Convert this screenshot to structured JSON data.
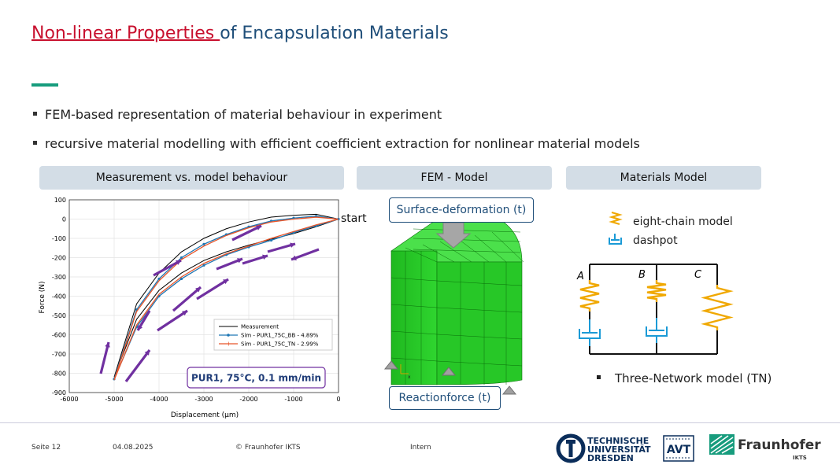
{
  "title": {
    "part1": "Non-linear Properties ",
    "part2": "of Encapsulation Materials"
  },
  "bullets": [
    "FEM-based representation of material behaviour in experiment",
    "recursive material modelling with efficient coefficient extraction for nonlinear material models"
  ],
  "panels": {
    "measurement": "Measurement vs. model behaviour",
    "fem": "FEM - Model",
    "materials": "Materials Model"
  },
  "chart_data": {
    "type": "line",
    "xlabel": "Displacement (µm)",
    "ylabel": "Force (N)",
    "xlim": [
      -6000,
      0
    ],
    "ylim": [
      -900,
      100
    ],
    "xticks": [
      -6000,
      -5000,
      -4000,
      -3000,
      -2000,
      -1000,
      0
    ],
    "yticks": [
      100,
      0,
      -100,
      -200,
      -300,
      -400,
      -500,
      -600,
      -700,
      -800,
      -900
    ],
    "grid": true,
    "legend_position": "bottom-right",
    "start_label": "start",
    "condition_label": "PUR1, 75°C, 0.1 mm/min",
    "series": [
      {
        "name": "Measurement",
        "color": "#000000",
        "x": [
          0,
          -500,
          -1000,
          -1500,
          -2000,
          -2500,
          -3000,
          -3500,
          -4000,
          -4500,
          -5000,
          -4500,
          -4000,
          -3500,
          -3000,
          -2500,
          -2000,
          -1500,
          -1000,
          -500
        ],
        "y": [
          0,
          -40,
          -75,
          -105,
          -135,
          -170,
          -215,
          -280,
          -370,
          -520,
          -820,
          -440,
          -280,
          -170,
          -100,
          -50,
          -15,
          10,
          20,
          25
        ]
      },
      {
        "name": "Sim - PUR1_75C_BB - 4.89%",
        "color": "#1f77b4",
        "x": [
          0,
          -500,
          -1000,
          -1500,
          -2000,
          -2500,
          -3000,
          -3500,
          -4000,
          -4500,
          -5000,
          -4500,
          -4000,
          -3500,
          -3000,
          -2500,
          -2000,
          -1500,
          -1000,
          -500
        ],
        "y": [
          0,
          -35,
          -70,
          -110,
          -145,
          -185,
          -240,
          -310,
          -400,
          -560,
          -830,
          -470,
          -310,
          -200,
          -130,
          -80,
          -40,
          -10,
          5,
          15
        ]
      },
      {
        "name": "Sim - PUR1_75C_TN - 2.99%",
        "color": "#e8562a",
        "x": [
          0,
          -500,
          -1000,
          -1500,
          -2000,
          -2500,
          -3000,
          -3500,
          -4000,
          -4500,
          -5000,
          -4500,
          -4000,
          -3500,
          -3000,
          -2500,
          -2000,
          -1500,
          -1000,
          -500
        ],
        "y": [
          0,
          -30,
          -65,
          -100,
          -140,
          -180,
          -230,
          -300,
          -390,
          -550,
          -835,
          -480,
          -320,
          -210,
          -140,
          -85,
          -45,
          -15,
          0,
          10
        ]
      }
    ]
  },
  "fem": {
    "surface_label": "Surface-deformation (t)",
    "reaction_label": "Reactionforce (t)",
    "mesh_color": "#22cc22"
  },
  "materials": {
    "legend_spring": "eight-chain model",
    "legend_dashpot": "dashpot",
    "branch_a": "A",
    "branch_b": "B",
    "branch_c": "C",
    "bullet": "Three-Network model (TN)",
    "spring_color": "#f0a800",
    "dashpot_color": "#1a9ad6"
  },
  "footer": {
    "page": "Seite 12",
    "date": "04.08.2025",
    "copyright": "© Fraunhofer IKTS",
    "classification": "Intern",
    "logo_tud_line1": "TECHNISCHE",
    "logo_tud_line2": "UNIVERSITÄT",
    "logo_tud_line3": "DRESDEN",
    "logo_avt": "AVT",
    "logo_fraunhofer": "Fraunhofer",
    "logo_ikts": "IKTS"
  }
}
